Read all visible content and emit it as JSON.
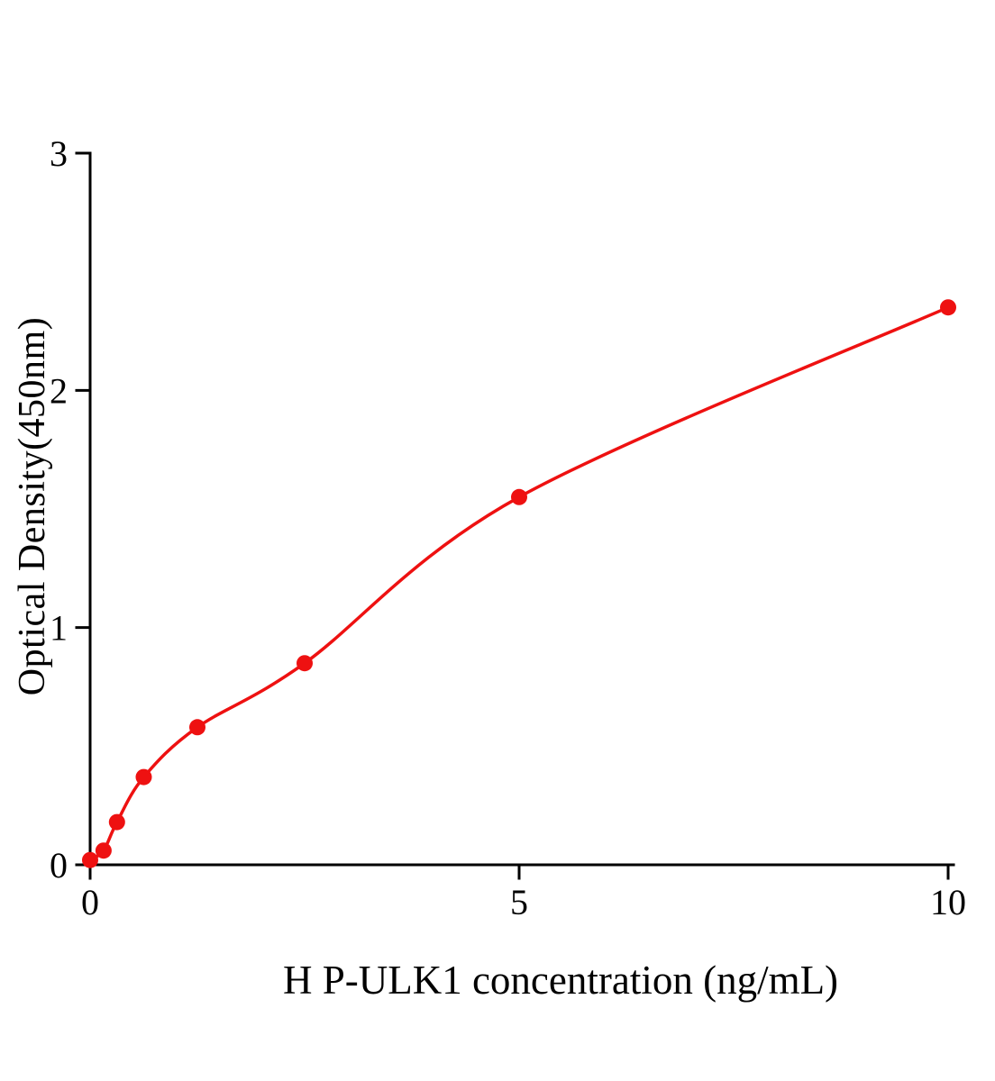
{
  "chart_data": {
    "type": "scatter",
    "title": "",
    "xlabel": "H P-ULK1 concentration (ng/mL)",
    "ylabel": "Optical Density(450nm)",
    "x": [
      0,
      0.156,
      0.3125,
      0.625,
      1.25,
      2.5,
      5,
      10
    ],
    "y": [
      0.02,
      0.06,
      0.18,
      0.37,
      0.58,
      0.85,
      1.55,
      2.35
    ],
    "xlim": [
      0,
      10
    ],
    "ylim": [
      0,
      3
    ],
    "x_ticks": [
      0,
      5,
      10
    ],
    "y_ticks": [
      0,
      1,
      2,
      3
    ],
    "series_color": "#ee1111",
    "axis_color": "#000000",
    "marker_radius": 9,
    "curve_width": 3.5,
    "axis_width": 3,
    "grid": false,
    "legend_position": "none"
  }
}
